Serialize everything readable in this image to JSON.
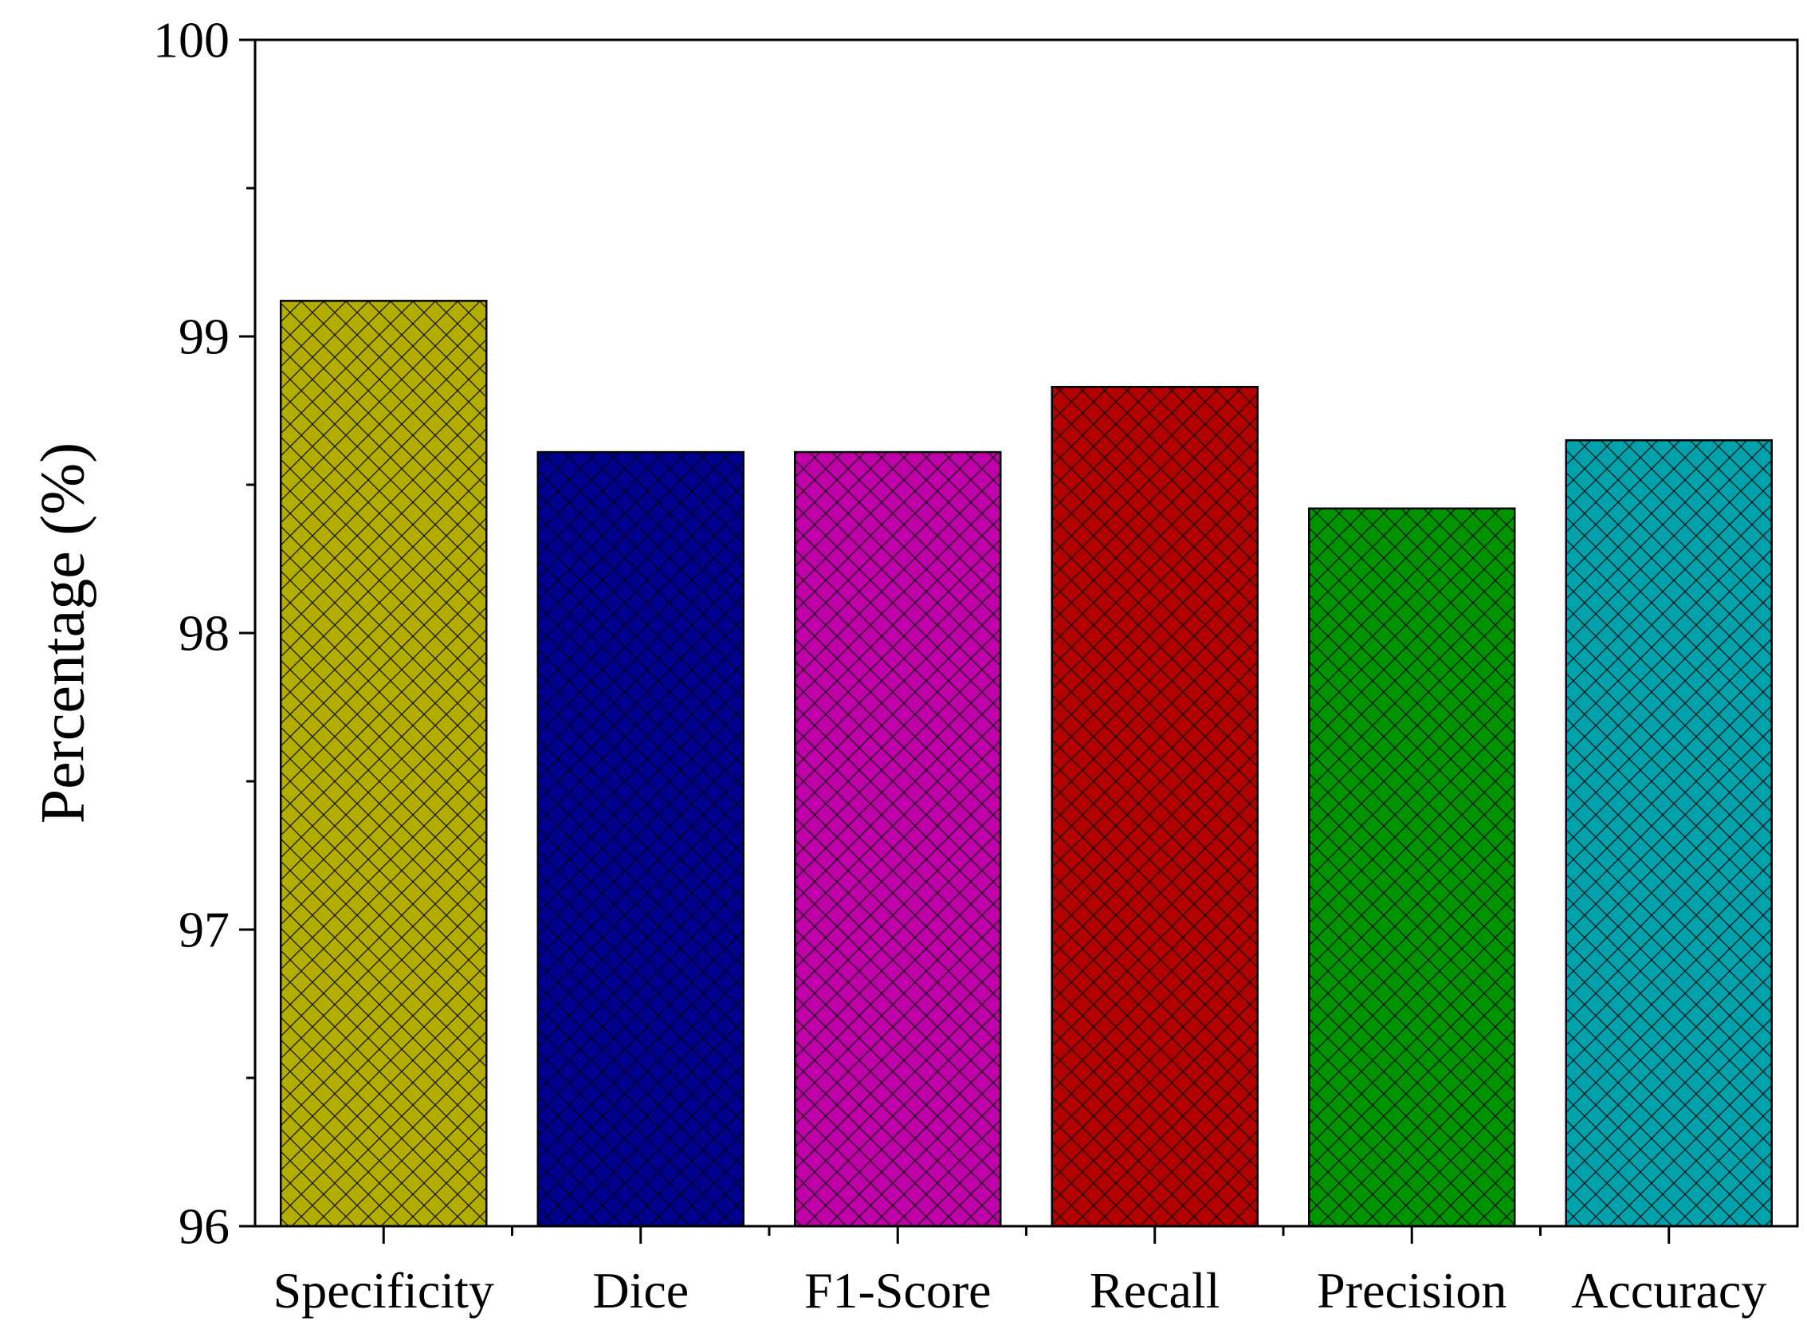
{
  "chart_data": {
    "type": "bar",
    "title": "",
    "xlabel": "",
    "ylabel": "Percentage (%)",
    "categories": [
      "Specificity",
      "Dice",
      "F1-Score",
      "Recall",
      "Precision",
      "Accuracy"
    ],
    "values": [
      99.12,
      98.61,
      98.61,
      98.83,
      98.42,
      98.65
    ],
    "colors": [
      "#b3ad00",
      "#00008f",
      "#c000a8",
      "#b30000",
      "#009400",
      "#00a3ac"
    ],
    "ylim": [
      96,
      100
    ],
    "yticks": [
      "96",
      "97",
      "98",
      "99",
      "100"
    ],
    "grid": false,
    "legend": "none",
    "pattern": "crosshatch"
  }
}
